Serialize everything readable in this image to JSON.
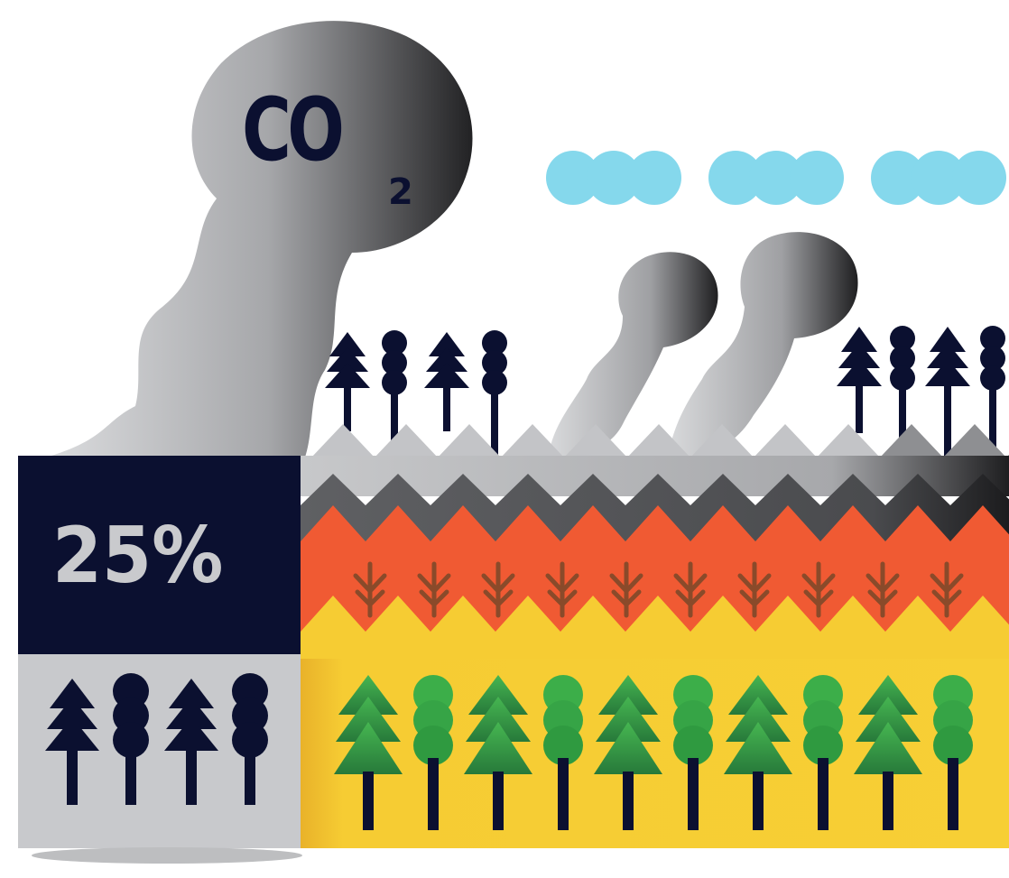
{
  "emission_label": {
    "text": "CO",
    "subscript": "2"
  },
  "stat": {
    "value": "25%"
  },
  "colors": {
    "navy": "#0b1030",
    "smoke_light": "#d7d8da",
    "smoke_dark": "#2a2a2c",
    "cloud": "#85d8ec",
    "orange_layer": "#f05a33",
    "yellow_layer": "#f6cc33",
    "tree_green": "#3cae49",
    "panel_grey": "#c8c9cc"
  },
  "icons": {
    "cloud_groups": 3,
    "chimney_smoke_plumes": 2,
    "topsoil_sprouts": 10,
    "green_trees": 10,
    "legend_trees": 4
  }
}
